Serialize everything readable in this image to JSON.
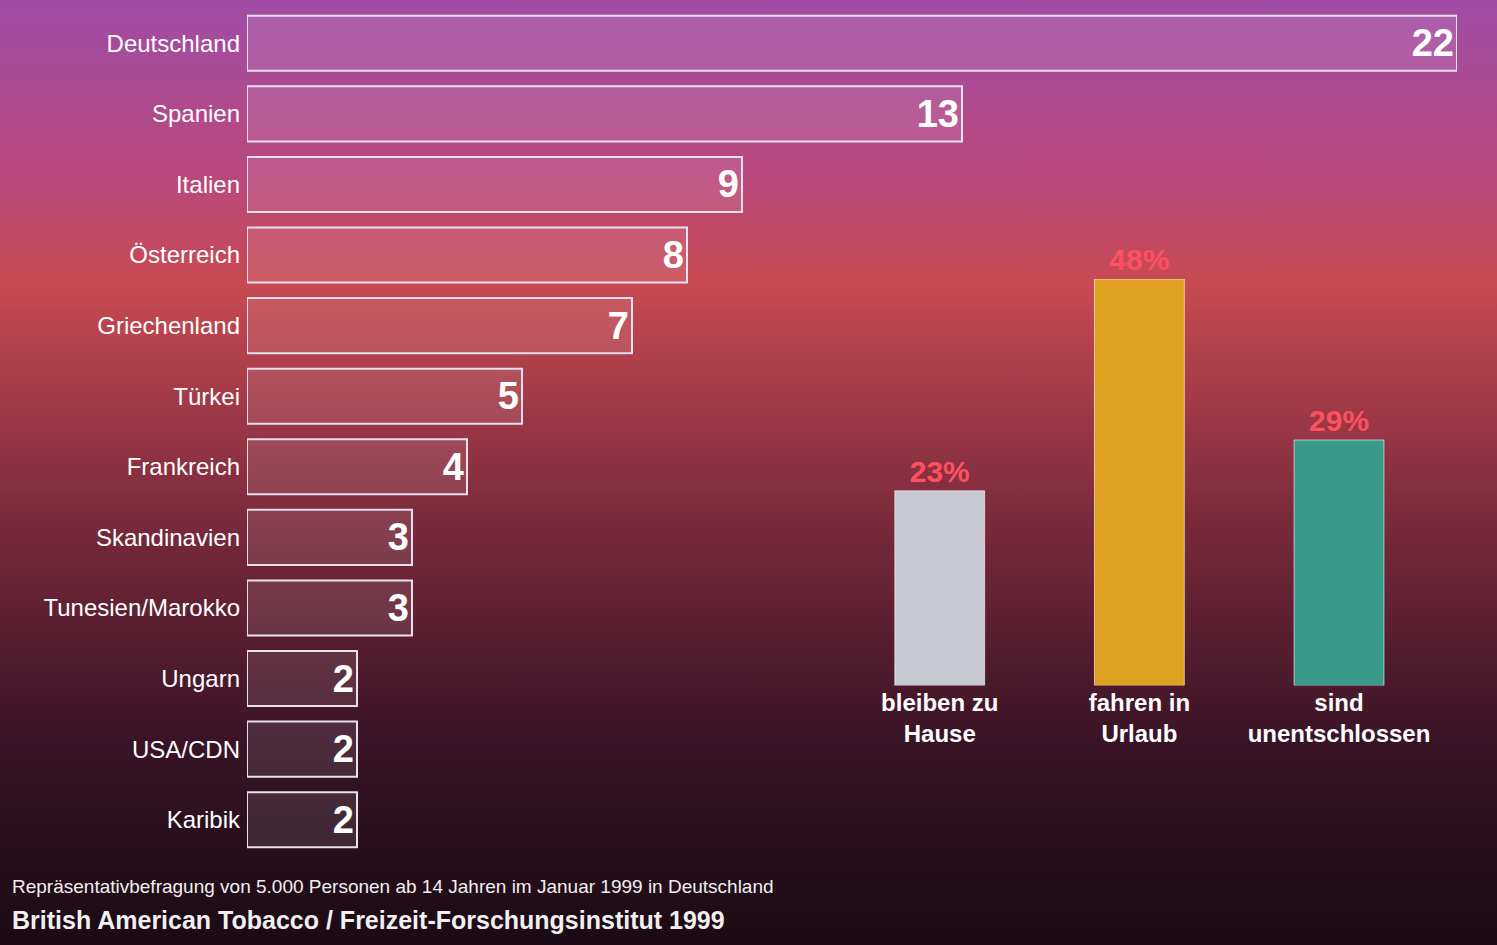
{
  "chart_data": [
    {
      "type": "bar",
      "orientation": "horizontal",
      "categories": [
        "Deutschland",
        "Spanien",
        "Italien",
        "Österreich",
        "Griechenland",
        "Türkei",
        "Frankreich",
        "Skandinavien",
        "Tunesien/Marokko",
        "Ungarn",
        "USA/CDN",
        "Karibik"
      ],
      "values": [
        22,
        13,
        9,
        8,
        7,
        5,
        4,
        3,
        3,
        2,
        2,
        2
      ],
      "xlim": [
        0,
        22
      ],
      "data_labels": true,
      "tick_labels": "y",
      "grid": false,
      "color": "#e8e0f0",
      "annotations": [
        "Repräsentativbefragung von 5.000 Personen ab 14 Jahren im Januar 1999 in Deutschland",
        "British American Tobacco / Freizeit-Forschungsinstitut 1999"
      ]
    },
    {
      "type": "bar",
      "categories": [
        "bleiben zu Hause",
        "fahren in Urlaub",
        "sind unentschlossen"
      ],
      "values": [
        23,
        48,
        29
      ],
      "value_labels": [
        "23%",
        "48%",
        "29%"
      ],
      "colors": [
        "#c8c8d2",
        "#e0a020",
        "#3a9a8a"
      ],
      "ylim": [
        0,
        48
      ],
      "data_labels": true,
      "tick_labels": "x",
      "grid": false
    }
  ]
}
